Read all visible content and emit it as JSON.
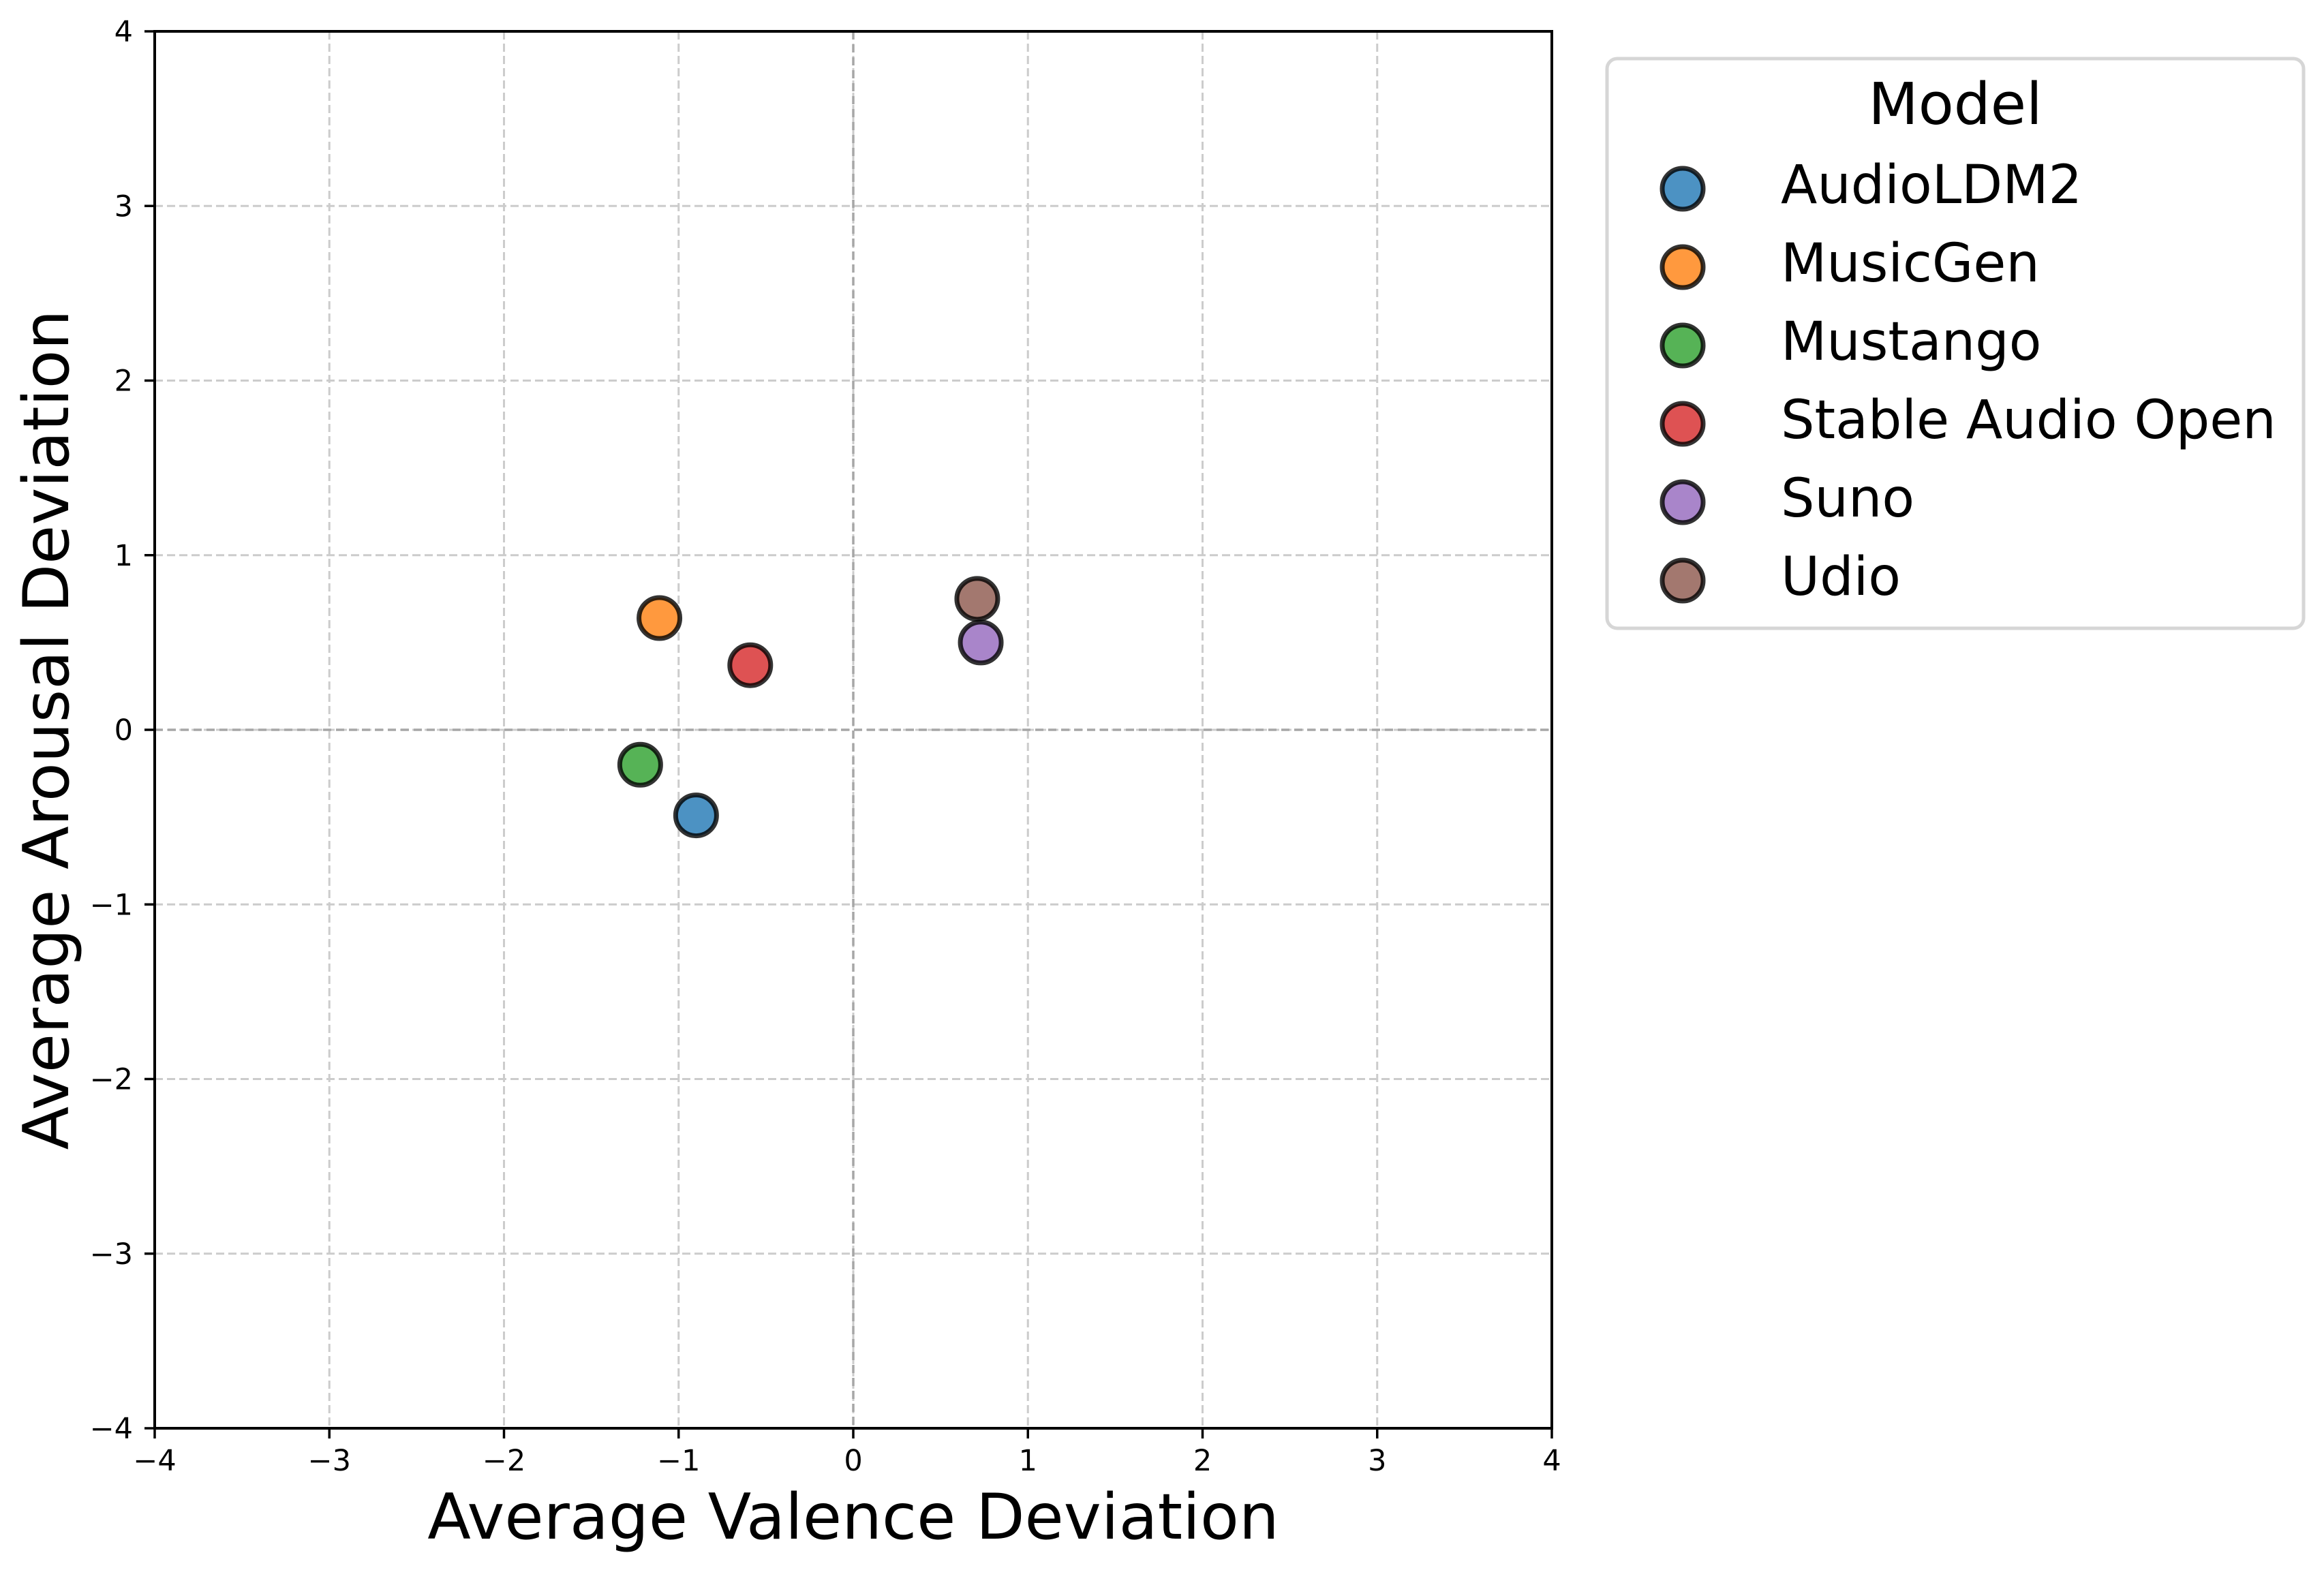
{
  "chart_data": {
    "type": "scatter",
    "title": "",
    "xlabel": "Average Valence Deviation",
    "ylabel": "Average Arousal Deviation",
    "xlim": [
      -4,
      4
    ],
    "ylim": [
      -4,
      4
    ],
    "xticks": [
      -4,
      -3,
      -2,
      -1,
      0,
      1,
      2,
      3,
      4
    ],
    "yticks": [
      -4,
      -3,
      -2,
      -1,
      0,
      1,
      2,
      3,
      4
    ],
    "xtick_labels": [
      "−4",
      "−3",
      "−2",
      "−1",
      "0",
      "1",
      "2",
      "3",
      "4"
    ],
    "ytick_labels": [
      "−4",
      "−3",
      "−2",
      "−1",
      "0",
      "1",
      "2",
      "3",
      "4"
    ],
    "grid": true,
    "zero_lines": true,
    "legend": {
      "title": "Model",
      "placement": "outside-top-right"
    },
    "series": [
      {
        "name": "AudioLDM2",
        "color": "#1f77b4",
        "x": -0.9,
        "y": -0.49
      },
      {
        "name": "MusicGen",
        "color": "#ff7f0e",
        "x": -1.11,
        "y": 0.64
      },
      {
        "name": "Mustango",
        "color": "#2ca02c",
        "x": -1.22,
        "y": -0.2
      },
      {
        "name": "Stable Audio Open",
        "color": "#d62728",
        "x": -0.59,
        "y": 0.37
      },
      {
        "name": "Suno",
        "color": "#9467bd",
        "x": 0.73,
        "y": 0.5
      },
      {
        "name": "Udio",
        "color": "#8c564b",
        "x": 0.71,
        "y": 0.75
      }
    ],
    "marker_alpha": 0.8,
    "marker_edge_color": "#000000"
  }
}
